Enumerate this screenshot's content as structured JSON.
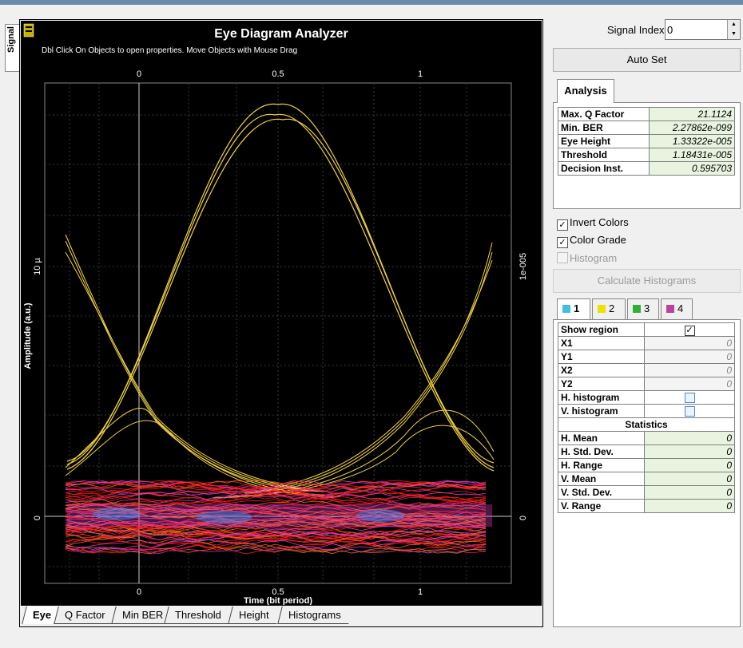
{
  "window": {
    "side_tab": "Signal"
  },
  "plot": {
    "title": "Eye Diagram Analyzer",
    "hint": "Dbl Click On Objects to open properties.  Move Objects with Mouse Drag",
    "ylabel": "Amplitude (a.u.)",
    "xlabel": "Time (bit period)",
    "x_ticks": [
      "0",
      "0.5",
      "1"
    ],
    "y_left_ticks": [
      "0",
      "10 µ"
    ],
    "y_right_ticks": [
      "0",
      "1e-005"
    ],
    "colors": {
      "signal": "#f0d040",
      "noise_red": "#ff2020",
      "noise_pink": "#e040c0",
      "noise_blue": "#4090ff",
      "grid": "#555555"
    }
  },
  "bottom_tabs": [
    "Eye",
    "Q Factor",
    "Min BER",
    "Threshold",
    "Height",
    "Histograms"
  ],
  "controls": {
    "signal_index_label": "Signal Index:",
    "signal_index_value": "0",
    "auto_set": "Auto Set",
    "analysis_tab": "Analysis",
    "analysis": [
      {
        "key": "Max. Q Factor",
        "value": "21.1124"
      },
      {
        "key": "Min. BER",
        "value": "2.27862e-099"
      },
      {
        "key": "Eye Height",
        "value": "1.33322e-005"
      },
      {
        "key": "Threshold",
        "value": "1.18431e-005"
      },
      {
        "key": "Decision Inst.",
        "value": "0.595703"
      }
    ],
    "invert_colors": "Invert Colors",
    "color_grade": "Color Grade",
    "histogram": "Histogram",
    "calc_histograms": "Calculate Histograms",
    "channel_tabs": [
      {
        "label": "1",
        "color": "#40c0e0"
      },
      {
        "label": "2",
        "color": "#f0e000"
      },
      {
        "label": "3",
        "color": "#30b030"
      },
      {
        "label": "4",
        "color": "#c040a0"
      }
    ],
    "region": [
      {
        "key": "Show region",
        "value": "✓"
      },
      {
        "key": "X1",
        "value": "0"
      },
      {
        "key": "Y1",
        "value": "0"
      },
      {
        "key": "X2",
        "value": "0"
      },
      {
        "key": "Y2",
        "value": "0"
      },
      {
        "key": "H. histogram",
        "value": ""
      },
      {
        "key": "V. histogram",
        "value": ""
      }
    ],
    "statistics_header": "Statistics",
    "statistics": [
      {
        "key": "H. Mean",
        "value": "0"
      },
      {
        "key": "H. Std. Dev.",
        "value": "0"
      },
      {
        "key": "H. Range",
        "value": "0"
      },
      {
        "key": "V. Mean",
        "value": "0"
      },
      {
        "key": "V. Std. Dev.",
        "value": "0"
      },
      {
        "key": "V. Range",
        "value": "0"
      }
    ]
  }
}
